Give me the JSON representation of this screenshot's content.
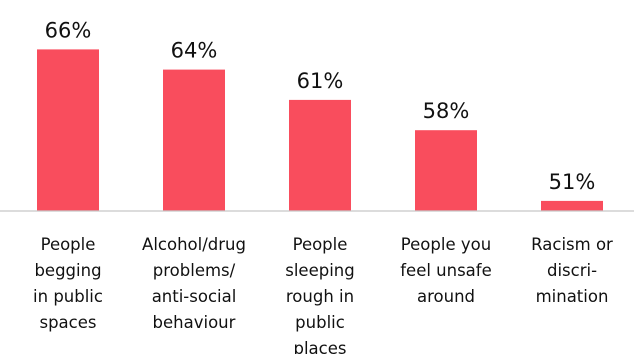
{
  "chart_data": {
    "type": "bar",
    "categories": [
      [
        "People",
        "begging",
        "in public",
        "spaces"
      ],
      [
        "Alcohol/drug",
        "problems/",
        "anti-social",
        "behaviour"
      ],
      [
        "People",
        "sleeping",
        "rough in",
        "public",
        "places"
      ],
      [
        "People you",
        "feel unsafe",
        "around"
      ],
      [
        "Racism or",
        "discri-",
        "mination"
      ]
    ],
    "values": [
      66,
      64,
      61,
      58,
      51
    ],
    "value_labels": [
      "66%",
      "64%",
      "61%",
      "58%",
      "51%"
    ],
    "bar_color": "#f94d5d",
    "axis_color": "#c8c8c8",
    "title": "",
    "xlabel": "",
    "ylabel": "",
    "grid": false,
    "legend": "none"
  }
}
